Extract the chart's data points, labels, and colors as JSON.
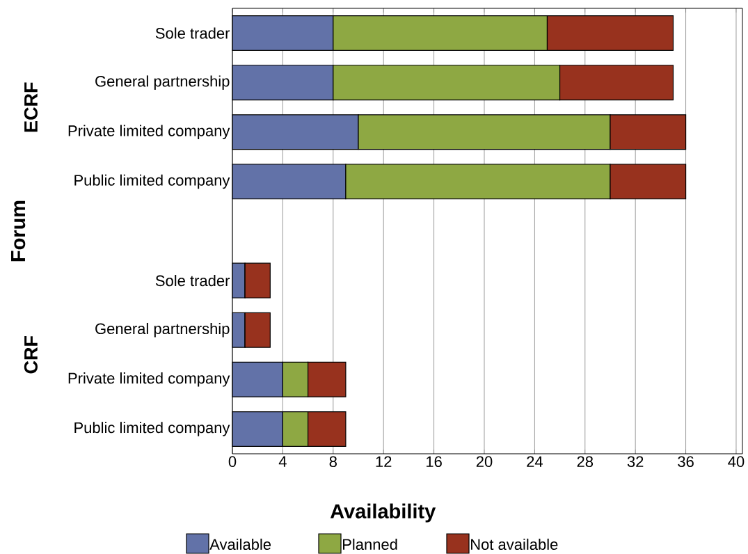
{
  "chart_data": {
    "type": "bar",
    "orientation": "horizontal",
    "stacked": true,
    "xlabel": "Availability",
    "ylabel": "Forum",
    "annotations": [
      "ECRF",
      "CRF"
    ],
    "categories": [
      "Sole trader",
      "General partnership",
      "Private limited company",
      "Public limited company",
      null,
      "Sole trader",
      "General partnership",
      "Private limited company",
      "Public limited company"
    ],
    "series": [
      {
        "name": "Available",
        "color": "#6272a8",
        "values": [
          8,
          8,
          10,
          9,
          null,
          1,
          1,
          4,
          4
        ]
      },
      {
        "name": "Planned",
        "color": "#8ea843",
        "values": [
          17,
          18,
          20,
          21,
          null,
          0,
          0,
          2,
          2
        ]
      },
      {
        "name": "Not available",
        "color": "#98321e",
        "values": [
          10,
          9,
          6,
          6,
          null,
          2,
          2,
          3,
          3
        ]
      }
    ],
    "xlim": [
      0,
      40.5
    ],
    "xticks": [
      0,
      4,
      8,
      12,
      16,
      20,
      24,
      28,
      32,
      36,
      40
    ],
    "grid": "x",
    "legend": "bottom"
  }
}
